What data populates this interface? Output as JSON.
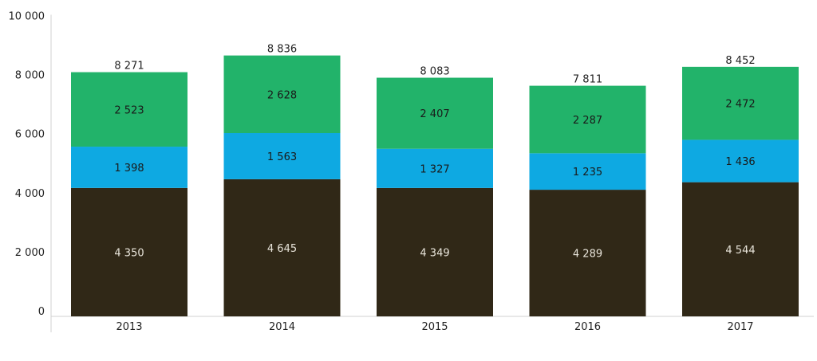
{
  "chart_data": {
    "type": "bar",
    "stacked": true,
    "categories": [
      "2013",
      "2014",
      "2015",
      "2016",
      "2017"
    ],
    "series": [
      {
        "values": [
          4350,
          4645,
          4349,
          4289,
          4544
        ],
        "color": "#302817",
        "label_color": "#e8e4da"
      },
      {
        "values": [
          1398,
          1563,
          1327,
          1235,
          1436
        ],
        "color": "#0ea9e2",
        "label_color": "#1a1a1a"
      },
      {
        "values": [
          2523,
          2628,
          2407,
          2287,
          2472
        ],
        "color": "#22b36a",
        "label_color": "#1a1a1a"
      }
    ],
    "series_labels": [
      [
        "4 350",
        "4 645",
        "4 349",
        "4 289",
        "4 544"
      ],
      [
        "1 398",
        "1 563",
        "1 327",
        "1 235",
        "1 436"
      ],
      [
        "2 523",
        "2 628",
        "2 407",
        "2 287",
        "2 472"
      ]
    ],
    "totals": [
      8271,
      8836,
      8083,
      7811,
      8452
    ],
    "total_labels": [
      "8 271",
      "8 836",
      "8 083",
      "7 811",
      "8 452"
    ],
    "y_ticks": [
      0,
      2000,
      4000,
      6000,
      8000,
      10000
    ],
    "y_tick_labels": [
      "0",
      "2 000",
      "4 000",
      "6 000",
      "8 000",
      "10 000"
    ],
    "ylim": [
      0,
      10000
    ],
    "grid": false,
    "legend": "none"
  }
}
